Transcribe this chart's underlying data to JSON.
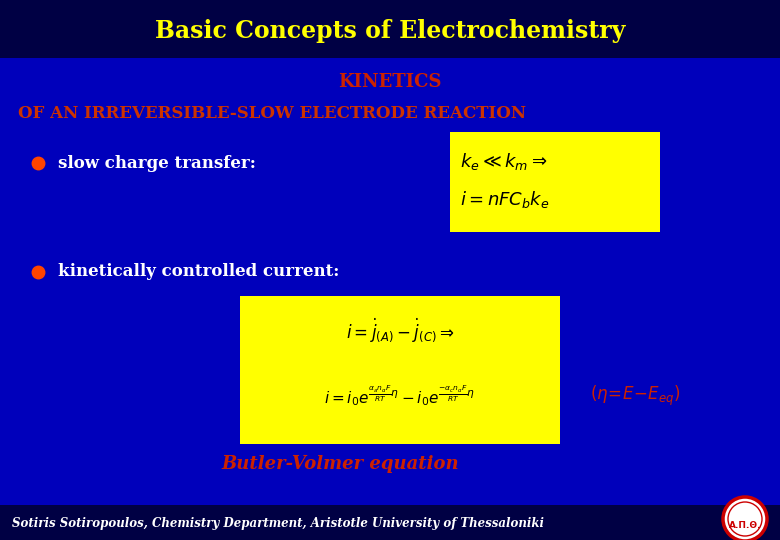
{
  "bg_color": "#0000bb",
  "title_bar_color": "#000044",
  "title_text": "Basic Concepts of Electrochemistry",
  "title_color": "#ffff00",
  "kinetics_text": "KINETICS",
  "kinetics_color": "#cc2200",
  "subtitle_text": "OF AN IRREVERSIBLE-SLOW ELECTRODE REACTION",
  "subtitle_color": "#cc3300",
  "bullet_color": "#ff4400",
  "bullet1_text": "slow charge transfer:",
  "bullet2_text": "kinetically controlled current:",
  "bullet_text_color": "#ffffff",
  "box_color": "#ffff00",
  "box_text_color": "#000000",
  "butler_volmer_text": "Butler-Volmer equation",
  "butler_volmer_color": "#cc2200",
  "footer_bar_color": "#000044",
  "footer_text": "Sotiris Sotiropoulos, Chemistry Department, Aristotle University of Thessaloniki",
  "footer_text_color": "#ffffff",
  "eta_color": "#cc2200",
  "fig_width": 7.8,
  "fig_height": 5.4,
  "dpi": 100
}
